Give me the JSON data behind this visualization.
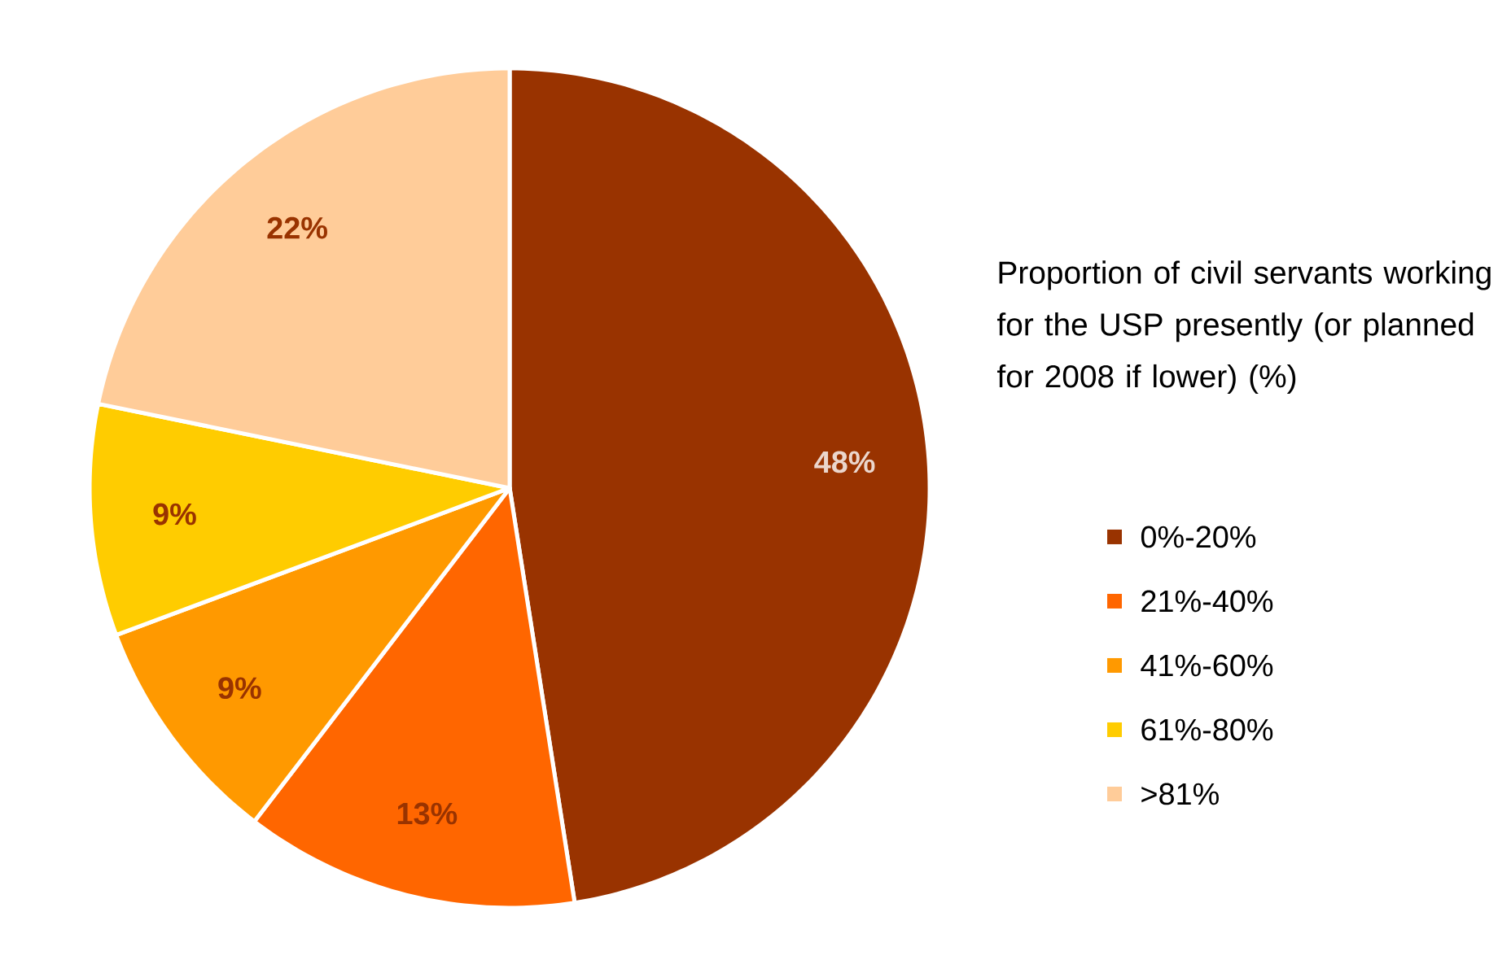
{
  "chart_data": {
    "type": "pie",
    "legend_title": "Proportion of civil servants working for the USP presently (or planned for 2008 if lower) (%)",
    "categories": [
      "0%-20%",
      "21%-40%",
      "41%-60%",
      "61%-80%",
      ">81%"
    ],
    "values": [
      48,
      13,
      9,
      9,
      22
    ],
    "colors": [
      "#993300",
      "#ff6600",
      "#ff9900",
      "#ffcc00",
      "#ffcc99"
    ],
    "value_labels": [
      "48%",
      "13%",
      "9%",
      "9%",
      "22%"
    ],
    "legend": "right"
  }
}
